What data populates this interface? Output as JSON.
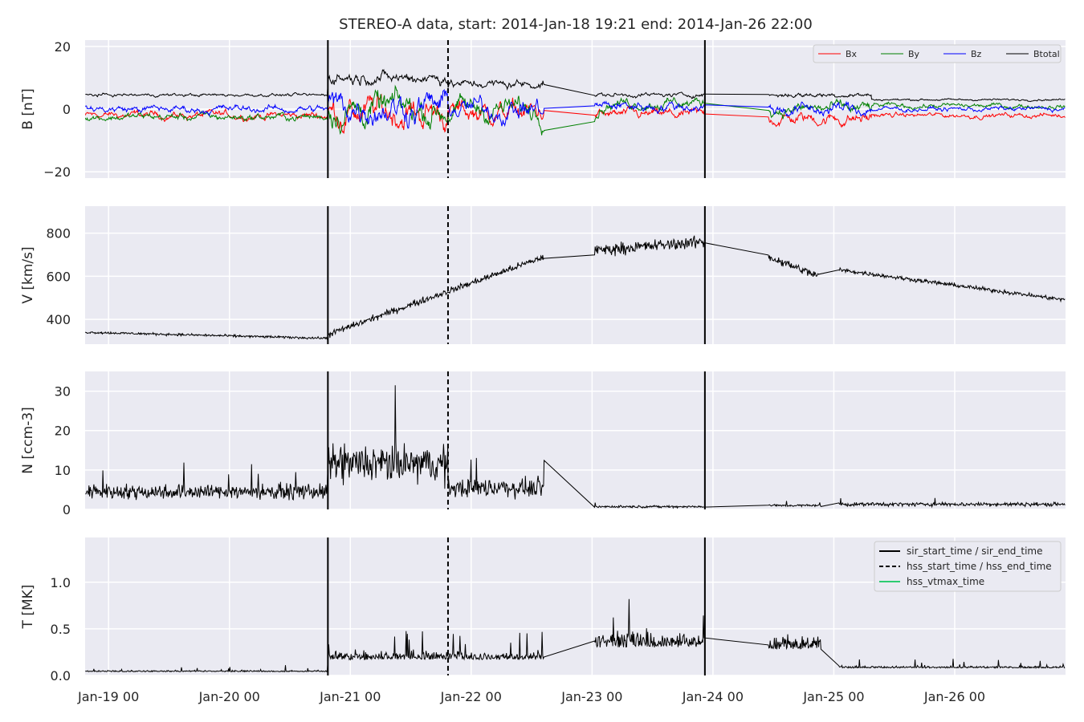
{
  "chart_data": {
    "type": "line",
    "title": "STEREO-A data, start: 2014-Jan-18 19:21  end: 2014-Jan-26 22:00",
    "x_ticks": [
      "Jan-19 00",
      "Jan-20 00",
      "Jan-21 00",
      "Jan-22 00",
      "Jan-23 00",
      "Jan-24 00",
      "Jan-25 00",
      "Jan-26 00"
    ],
    "x_range_hours": [
      -4.65,
      190.0
    ],
    "event_lines": {
      "sir_start_time": 43.55,
      "sir_end_time": 118.4,
      "hss_start_time": 67.4,
      "hss_vtmax_time": null
    },
    "panels": [
      {
        "id": "b",
        "ylabel": "B [nT]",
        "ylim": [
          -22,
          22
        ],
        "yticks": [
          20,
          0,
          -20
        ],
        "ytick_labels": [
          "20",
          "0",
          "−20"
        ],
        "series": [
          {
            "name": "Bx",
            "color": "#ff0000"
          },
          {
            "name": "By",
            "color": "#008000"
          },
          {
            "name": "Bz",
            "color": "#0000ff"
          },
          {
            "name": "Btotal",
            "color": "#000000"
          }
        ],
        "legend": "top-right",
        "segments": [
          {
            "t0": -4.6,
            "t1": 43.5,
            "base": 4.5,
            "spread": 1.8,
            "Bx": -2,
            "By": -2.5,
            "Bz": 0
          },
          {
            "t0": 43.6,
            "t1": 67.4,
            "base": 10,
            "spread": 7,
            "Bx": -1,
            "By": 0,
            "Bz": 1
          },
          {
            "t0": 67.4,
            "t1": 86.5,
            "base": 8,
            "spread": 5,
            "Bx": -1,
            "By": 0,
            "Bz": 0
          },
          {
            "t0": 96.5,
            "t1": 118.3,
            "base": 4.5,
            "spread": 2.5,
            "Bx": -2,
            "By": 2,
            "Bz": 1
          },
          {
            "t0": 131.0,
            "t1": 151.5,
            "base": 4.5,
            "spread": 3,
            "Bx": -3,
            "By": 0,
            "Bz": 0
          },
          {
            "t0": 151.5,
            "t1": 190.0,
            "base": 3,
            "spread": 1.2,
            "Bx": -2,
            "By": 1,
            "Bz": 0
          }
        ]
      },
      {
        "id": "v",
        "ylabel": "V [km/s]",
        "ylim": [
          285,
          925
        ],
        "yticks": [
          800,
          600,
          400
        ],
        "ytick_labels": [
          "800",
          "600",
          "400"
        ],
        "legend": "none",
        "segments": [
          {
            "t0": -4.6,
            "t1": 43.5,
            "v0": 340,
            "v1": 312,
            "noise": 8
          },
          {
            "t0": 43.6,
            "t1": 86.5,
            "v0": 330,
            "v1": 690,
            "noise": 22
          },
          {
            "t0": 96.5,
            "t1": 118.3,
            "v0": 720,
            "v1": 760,
            "noise": 40
          },
          {
            "t0": 131.0,
            "t1": 141.0,
            "v0": 690,
            "v1": 600,
            "noise": 30
          },
          {
            "t0": 145.0,
            "t1": 190.0,
            "v0": 630,
            "v1": 490,
            "noise": 14
          }
        ]
      },
      {
        "id": "n",
        "ylabel": "N [ccm-3]",
        "ylim": [
          0,
          35
        ],
        "yticks": [
          30,
          20,
          10,
          0
        ],
        "ytick_labels": [
          "30",
          "20",
          "10",
          "0"
        ],
        "legend": "none",
        "segments": [
          {
            "t0": -4.6,
            "t1": 43.5,
            "base": 4.5,
            "noise": 2.0
          },
          {
            "t0": 43.6,
            "t1": 67.4,
            "base": 11.5,
            "noise": 5.0
          },
          {
            "t0": 67.4,
            "t1": 86.5,
            "base": 5.5,
            "noise": 2.5
          },
          {
            "t0": 96.5,
            "t1": 118.3,
            "base": 0.7,
            "noise": 0.3
          },
          {
            "t0": 131.0,
            "t1": 141.5,
            "base": 1.0,
            "noise": 0.3
          },
          {
            "t0": 145.0,
            "t1": 190.0,
            "base": 1.3,
            "noise": 0.5
          }
        ]
      },
      {
        "id": "t",
        "ylabel": "T [MK]",
        "ylim": [
          0,
          1.48
        ],
        "yticks": [
          1.0,
          0.5,
          0.0
        ],
        "ytick_labels": [
          "1.0",
          "0.5",
          "0.0"
        ],
        "legend": "top-right",
        "segments": [
          {
            "t0": -4.6,
            "t1": 43.5,
            "base": 0.04,
            "noise": 0.02
          },
          {
            "t0": 43.6,
            "t1": 86.5,
            "base": 0.17,
            "noise": 0.12
          },
          {
            "t0": 96.5,
            "t1": 118.3,
            "base": 0.3,
            "noise": 0.25
          },
          {
            "t0": 131.0,
            "t1": 141.5,
            "base": 0.28,
            "noise": 0.2
          },
          {
            "t0": 145.0,
            "t1": 190.0,
            "base": 0.08,
            "noise": 0.03
          }
        ]
      }
    ],
    "event_legend": [
      {
        "label": "sir_start_time / sir_end_time",
        "style": "solid",
        "color": "#000000"
      },
      {
        "label": "hss_start_time / hss_end_time",
        "style": "dashed",
        "color": "#000000"
      },
      {
        "label": "hss_vtmax_time",
        "style": "solid",
        "color": "#2ecc71"
      }
    ]
  }
}
